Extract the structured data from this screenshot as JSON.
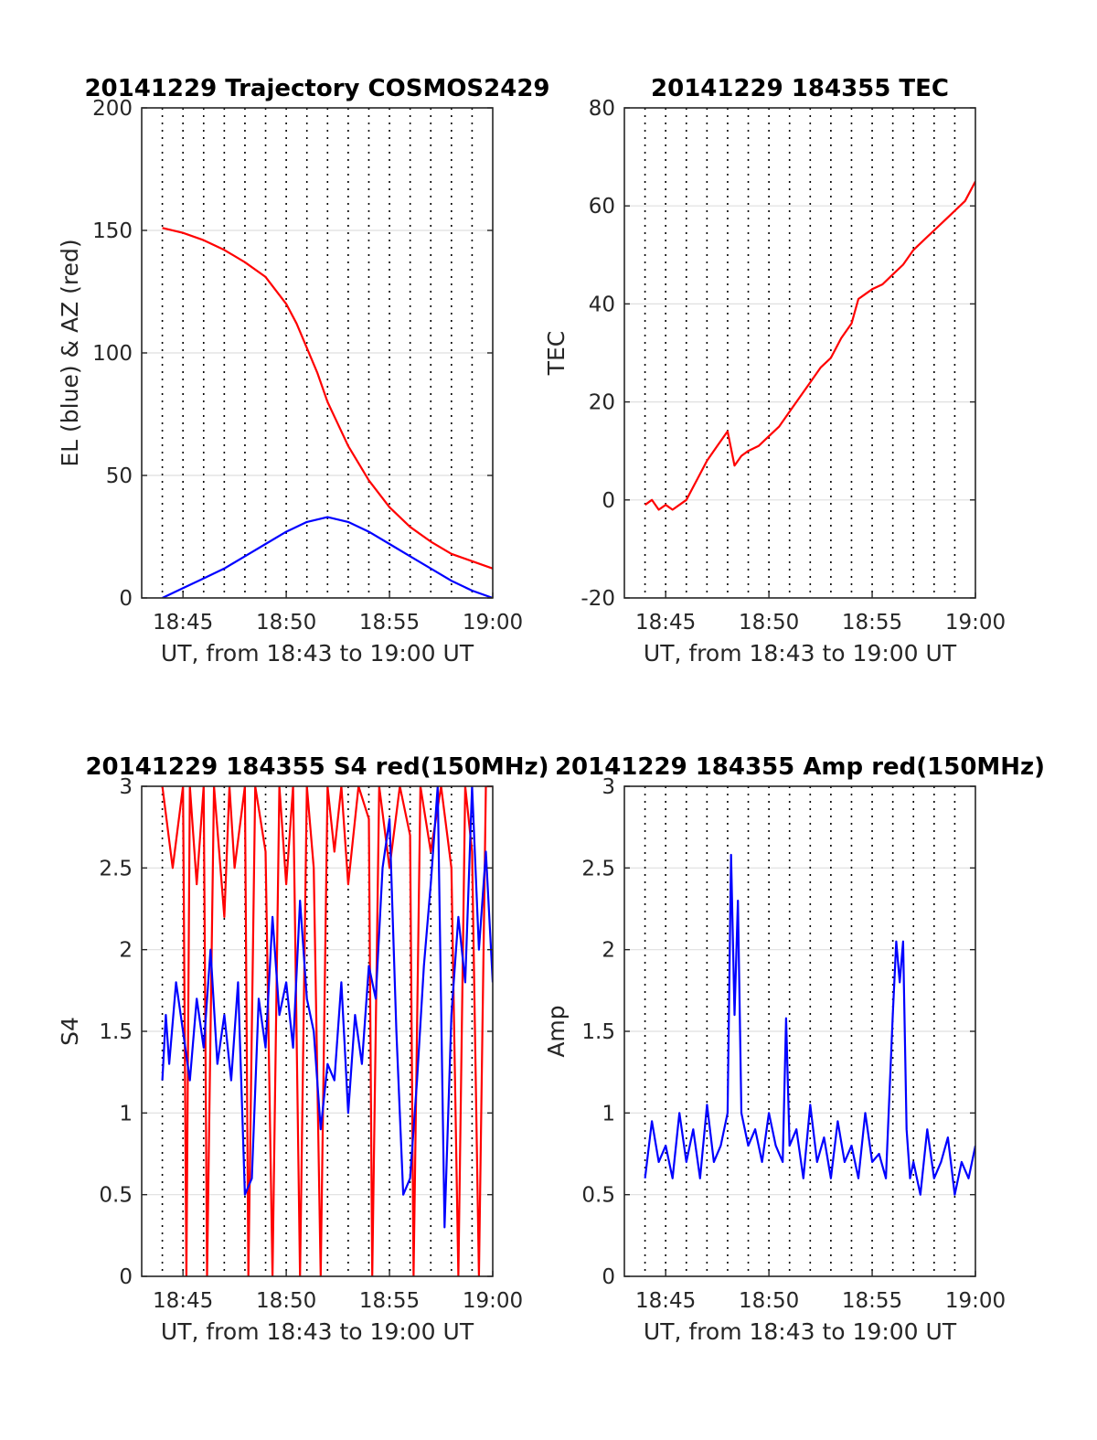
{
  "figure": {
    "time_axis_ticks": [
      "18:45",
      "18:50",
      "18:55",
      "19:00"
    ],
    "xlabel": "UT, from 18:43 to 19:00 UT"
  },
  "chart_data": [
    {
      "type": "line",
      "title": "20141229 Trajectory COSMOS2429",
      "xlabel": "UT, from 18:43 to 19:00 UT",
      "ylabel": "EL (blue) & AZ (red)",
      "xlim": [
        "18:43:00",
        "19:00:00"
      ],
      "ylim": [
        0,
        200
      ],
      "yticks": [
        "0",
        "50",
        "100",
        "150",
        "200"
      ],
      "xticks": [
        "18:45",
        "18:50",
        "18:55",
        "19:00"
      ],
      "grid": "dotted vertical every minute, light horizontal",
      "series": [
        {
          "color": "#ff0000",
          "x": [
            "18:44:00",
            "18:45:00",
            "18:46:00",
            "18:47:00",
            "18:48:00",
            "18:49:00",
            "18:50:00",
            "18:50:30",
            "18:51:00",
            "18:51:30",
            "18:52:00",
            "18:52:30",
            "18:53:00",
            "18:54:00",
            "18:55:00",
            "18:56:00",
            "18:57:00",
            "18:58:00",
            "18:59:00",
            "19:00:00"
          ],
          "y": [
            151,
            149,
            146,
            142,
            137,
            131,
            120,
            112,
            102,
            92,
            80,
            71,
            62,
            48,
            37,
            29,
            23,
            18,
            15,
            12
          ]
        },
        {
          "color": "#0000ff",
          "x": [
            "18:44:00",
            "18:45:00",
            "18:46:00",
            "18:47:00",
            "18:48:00",
            "18:49:00",
            "18:50:00",
            "18:51:00",
            "18:52:00",
            "18:53:00",
            "18:54:00",
            "18:55:00",
            "18:56:00",
            "18:57:00",
            "18:58:00",
            "18:59:00",
            "19:00:00"
          ],
          "y": [
            0,
            4,
            8,
            12,
            17,
            22,
            27,
            31,
            33,
            31,
            27,
            22,
            17,
            12,
            7,
            3,
            0
          ]
        }
      ]
    },
    {
      "type": "line",
      "title": "20141229 184355 TEC",
      "xlabel": "UT, from 18:43 to 19:00 UT",
      "ylabel": "TEC",
      "xlim": [
        "18:43:00",
        "19:00:00"
      ],
      "ylim": [
        -20,
        80
      ],
      "yticks": [
        "-20",
        "0",
        "20",
        "40",
        "60",
        "80"
      ],
      "xticks": [
        "18:45",
        "18:50",
        "18:55",
        "19:00"
      ],
      "series": [
        {
          "color": "#ff0000",
          "x": [
            "18:44:00",
            "18:44:20",
            "18:44:40",
            "18:45:00",
            "18:45:20",
            "18:45:40",
            "18:46:00",
            "18:46:30",
            "18:47:00",
            "18:47:30",
            "18:48:00",
            "18:48:20",
            "18:48:40",
            "18:49:00",
            "18:49:30",
            "18:50:00",
            "18:50:30",
            "18:51:00",
            "18:51:30",
            "18:52:00",
            "18:52:30",
            "18:53:00",
            "18:53:30",
            "18:54:00",
            "18:54:20",
            "18:54:40",
            "18:55:00",
            "18:55:30",
            "18:56:00",
            "18:56:30",
            "18:57:00",
            "18:57:30",
            "18:58:00",
            "18:58:30",
            "18:59:00",
            "18:59:30",
            "19:00:00"
          ],
          "y": [
            -1,
            0,
            -2,
            -1,
            -2,
            -1,
            0,
            4,
            8,
            11,
            14,
            7,
            9,
            10,
            11,
            13,
            15,
            18,
            21,
            24,
            27,
            29,
            33,
            36,
            41,
            42,
            43,
            44,
            46,
            48,
            51,
            53,
            55,
            57,
            59,
            61,
            65
          ]
        }
      ]
    },
    {
      "type": "line",
      "title": "20141229 184355 S4 red(150MHz)",
      "xlabel": "UT, from 18:43 to 19:00 UT",
      "ylabel": "S4",
      "xlim": [
        "18:43:00",
        "19:00:00"
      ],
      "ylim": [
        0,
        3
      ],
      "yticks": [
        "0",
        "0.5",
        "1",
        "1.5",
        "2",
        "2.5",
        "3"
      ],
      "xticks": [
        "18:45",
        "18:50",
        "18:55",
        "19:00"
      ],
      "series": [
        {
          "color": "#ff0000",
          "x": [
            "18:44:00",
            "18:44:30",
            "18:45:00",
            "18:45:10",
            "18:45:20",
            "18:45:40",
            "18:46:00",
            "18:46:10",
            "18:46:30",
            "18:47:00",
            "18:47:15",
            "18:47:30",
            "18:48:00",
            "18:48:10",
            "18:48:30",
            "18:49:00",
            "18:49:20",
            "18:49:40",
            "18:50:00",
            "18:50:20",
            "18:50:40",
            "18:51:00",
            "18:51:20",
            "18:51:40",
            "18:52:00",
            "18:52:20",
            "18:52:40",
            "18:53:00",
            "18:53:30",
            "18:54:00",
            "18:54:10",
            "18:54:30",
            "18:55:00",
            "18:55:30",
            "18:56:00",
            "18:56:10",
            "18:56:30",
            "18:57:00",
            "18:57:30",
            "18:58:00",
            "18:58:20",
            "18:58:40",
            "18:59:00",
            "18:59:20",
            "18:59:40",
            "19:00:00"
          ],
          "y": [
            3,
            2.5,
            3,
            0,
            3,
            2.4,
            3,
            0,
            3,
            2.2,
            3,
            2.5,
            3,
            0,
            3,
            2.6,
            0,
            3,
            2.4,
            3,
            0,
            3,
            2.5,
            0,
            3,
            2.6,
            3,
            2.4,
            3,
            2.8,
            0,
            3,
            2.5,
            3,
            2.7,
            0,
            3,
            2.6,
            3,
            2.5,
            0,
            3,
            2.6,
            0,
            3,
            3
          ]
        },
        {
          "color": "#0000ff",
          "x": [
            "18:44:00",
            "18:44:10",
            "18:44:20",
            "18:44:40",
            "18:45:00",
            "18:45:20",
            "18:45:40",
            "18:46:00",
            "18:46:20",
            "18:46:40",
            "18:47:00",
            "18:47:20",
            "18:47:40",
            "18:48:00",
            "18:48:20",
            "18:48:40",
            "18:49:00",
            "18:49:20",
            "18:49:40",
            "18:50:00",
            "18:50:20",
            "18:50:40",
            "18:51:00",
            "18:51:20",
            "18:51:40",
            "18:52:00",
            "18:52:20",
            "18:52:40",
            "18:53:00",
            "18:53:20",
            "18:53:40",
            "18:54:00",
            "18:54:20",
            "18:54:40",
            "18:55:00",
            "18:55:20",
            "18:55:40",
            "18:56:00",
            "18:56:20",
            "18:56:40",
            "18:57:00",
            "18:57:20",
            "18:57:40",
            "18:58:00",
            "18:58:20",
            "18:58:40",
            "18:59:00",
            "18:59:20",
            "18:59:40",
            "19:00:00"
          ],
          "y": [
            1.2,
            1.6,
            1.3,
            1.8,
            1.5,
            1.2,
            1.7,
            1.4,
            2.0,
            1.3,
            1.6,
            1.2,
            1.8,
            0.5,
            0.6,
            1.7,
            1.4,
            2.2,
            1.6,
            1.8,
            1.4,
            2.3,
            1.7,
            1.5,
            0.9,
            1.3,
            1.2,
            1.8,
            1.0,
            1.6,
            1.3,
            1.9,
            1.7,
            2.5,
            2.8,
            1.5,
            0.5,
            0.6,
            1.2,
            1.9,
            2.4,
            3.0,
            0.3,
            1.6,
            2.2,
            1.8,
            3.0,
            2.0,
            2.6,
            1.8
          ]
        }
      ]
    },
    {
      "type": "line",
      "title": "20141229 184355 Amp red(150MHz)",
      "xlabel": "UT, from 18:43 to 19:00 UT",
      "ylabel": "Amp",
      "xlim": [
        "18:43:00",
        "19:00:00"
      ],
      "ylim": [
        0,
        3
      ],
      "yticks": [
        "0",
        "0.5",
        "1",
        "1.5",
        "2",
        "2.5",
        "3"
      ],
      "xticks": [
        "18:45",
        "18:50",
        "18:55",
        "19:00"
      ],
      "series": [
        {
          "color": "#0000ff",
          "x": [
            "18:44:00",
            "18:44:20",
            "18:44:40",
            "18:45:00",
            "18:45:20",
            "18:45:40",
            "18:46:00",
            "18:46:20",
            "18:46:40",
            "18:47:00",
            "18:47:20",
            "18:47:40",
            "18:48:00",
            "18:48:10",
            "18:48:20",
            "18:48:30",
            "18:48:40",
            "18:49:00",
            "18:49:20",
            "18:49:40",
            "18:50:00",
            "18:50:20",
            "18:50:40",
            "18:50:50",
            "18:51:00",
            "18:51:20",
            "18:51:40",
            "18:52:00",
            "18:52:20",
            "18:52:40",
            "18:53:00",
            "18:53:20",
            "18:53:40",
            "18:54:00",
            "18:54:20",
            "18:54:40",
            "18:55:00",
            "18:55:20",
            "18:55:40",
            "18:56:00",
            "18:56:10",
            "18:56:20",
            "18:56:30",
            "18:56:40",
            "18:56:50",
            "18:57:00",
            "18:57:20",
            "18:57:40",
            "18:58:00",
            "18:58:20",
            "18:58:40",
            "18:59:00",
            "18:59:20",
            "18:59:40",
            "19:00:00"
          ],
          "y": [
            0.6,
            0.95,
            0.7,
            0.8,
            0.6,
            1.0,
            0.7,
            0.9,
            0.6,
            1.05,
            0.7,
            0.8,
            1.0,
            2.58,
            1.6,
            2.3,
            1.0,
            0.8,
            0.9,
            0.7,
            1.0,
            0.8,
            0.7,
            1.58,
            0.8,
            0.9,
            0.6,
            1.05,
            0.7,
            0.85,
            0.6,
            0.95,
            0.7,
            0.8,
            0.6,
            1.0,
            0.7,
            0.75,
            0.6,
            1.6,
            2.05,
            1.8,
            2.05,
            0.9,
            0.6,
            0.7,
            0.5,
            0.9,
            0.6,
            0.7,
            0.85,
            0.5,
            0.7,
            0.6,
            0.8
          ]
        }
      ]
    }
  ]
}
